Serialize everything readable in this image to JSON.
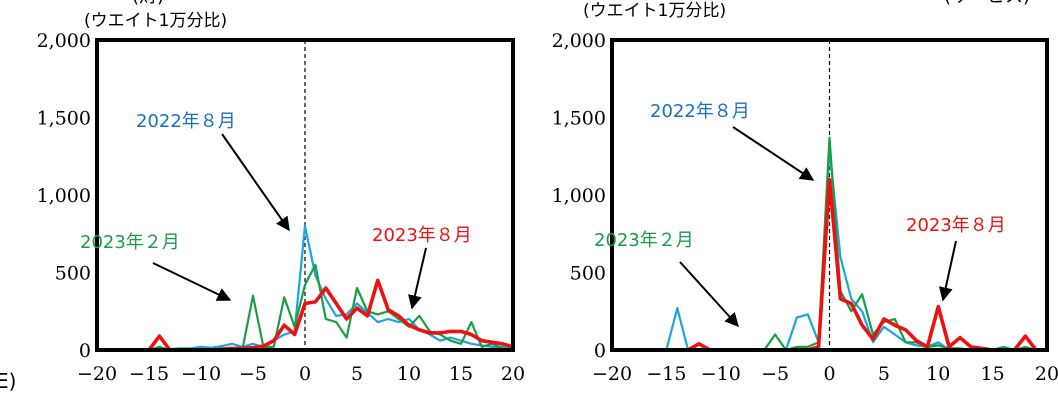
{
  "edge_label": "E)",
  "chart_data": [
    {
      "type": "line",
      "unit_label": "(ウエイト1万分比)",
      "title_fragment": "(財)",
      "xlim": [
        -20,
        20
      ],
      "ylim": [
        0,
        2000
      ],
      "x_ticks": [
        "-20",
        "-15",
        "-10",
        "-5",
        "0",
        "5",
        "10",
        "15",
        "20"
      ],
      "y_ticks": [
        "0",
        "500",
        "1,000",
        "1,500",
        "2,000"
      ],
      "reference_line_x": 0,
      "x": [
        -20,
        -19,
        -18,
        -17,
        -16,
        -15,
        -14,
        -13,
        -12,
        -11,
        -10,
        -9,
        -8,
        -7,
        -6,
        -5,
        -4,
        -3,
        -2,
        -1,
        0,
        1,
        2,
        3,
        4,
        5,
        6,
        7,
        8,
        9,
        10,
        11,
        12,
        13,
        14,
        15,
        16,
        17,
        18,
        19,
        20
      ],
      "series": [
        {
          "color": "#1aa5e0",
          "values": [
            0,
            0,
            0,
            0,
            0,
            0,
            10,
            5,
            10,
            10,
            20,
            15,
            25,
            40,
            20,
            40,
            20,
            60,
            100,
            120,
            800,
            480,
            330,
            220,
            230,
            300,
            240,
            180,
            200,
            180,
            200,
            130,
            100,
            60,
            80,
            60,
            40,
            30,
            20,
            20,
            10
          ]
        },
        {
          "color": "#1a9e45",
          "values": [
            0,
            0,
            0,
            0,
            0,
            0,
            20,
            0,
            0,
            0,
            0,
            0,
            10,
            10,
            10,
            350,
            20,
            20,
            340,
            150,
            420,
            550,
            200,
            180,
            80,
            400,
            250,
            230,
            250,
            200,
            150,
            220,
            120,
            100,
            60,
            40,
            180,
            20,
            40,
            10,
            0
          ]
        },
        {
          "color": "#ee1111",
          "values": [
            0,
            0,
            0,
            0,
            0,
            0,
            90,
            0,
            0,
            0,
            0,
            0,
            5,
            10,
            10,
            15,
            25,
            60,
            160,
            100,
            300,
            310,
            400,
            300,
            200,
            270,
            220,
            450,
            260,
            220,
            160,
            130,
            110,
            110,
            120,
            120,
            100,
            60,
            50,
            40,
            20
          ]
        }
      ],
      "annotations": [
        {
          "text": "2022年８月",
          "color": "#1a6fc0"
        },
        {
          "text": "2023年２月",
          "color": "#1a9e45"
        },
        {
          "text": "2023年８月",
          "color": "#ee1111"
        }
      ]
    },
    {
      "type": "line",
      "unit_label": "(ウエイト1万分比)",
      "title_fragment": "(サービス)",
      "xlim": [
        -20,
        20
      ],
      "ylim": [
        0,
        2000
      ],
      "x_ticks": [
        "-20",
        "-15",
        "-10",
        "-5",
        "0",
        "5",
        "10",
        "15",
        "20"
      ],
      "y_ticks": [
        "0",
        "500",
        "1,000",
        "1,500",
        "2,000"
      ],
      "reference_line_x": 0,
      "x": [
        -20,
        -19,
        -18,
        -17,
        -16,
        -15,
        -14,
        -13,
        -12,
        -11,
        -10,
        -9,
        -8,
        -7,
        -6,
        -5,
        -4,
        -3,
        -2,
        -1,
        0,
        1,
        2,
        3,
        4,
        5,
        6,
        7,
        8,
        9,
        10,
        11,
        12,
        13,
        14,
        15,
        16,
        17,
        18,
        19,
        20
      ],
      "series": [
        {
          "color": "#1aa5e0",
          "values": [
            0,
            0,
            0,
            0,
            0,
            0,
            270,
            0,
            0,
            0,
            0,
            0,
            0,
            0,
            0,
            0,
            0,
            210,
            230,
            50,
            1300,
            600,
            330,
            250,
            50,
            150,
            100,
            50,
            30,
            20,
            50,
            0,
            0,
            0,
            0,
            0,
            0,
            0,
            0,
            0,
            0
          ]
        },
        {
          "color": "#1a9e45",
          "values": [
            0,
            0,
            0,
            0,
            0,
            0,
            0,
            0,
            0,
            0,
            0,
            0,
            0,
            0,
            0,
            100,
            0,
            20,
            20,
            50,
            1370,
            380,
            250,
            360,
            100,
            180,
            200,
            50,
            50,
            20,
            30,
            10,
            10,
            0,
            10,
            0,
            20,
            0,
            20,
            0,
            0
          ]
        },
        {
          "color": "#ee1111",
          "values": [
            0,
            0,
            0,
            0,
            0,
            0,
            0,
            0,
            40,
            0,
            0,
            0,
            0,
            0,
            0,
            0,
            0,
            0,
            0,
            20,
            1100,
            330,
            300,
            160,
            70,
            200,
            160,
            130,
            60,
            20,
            280,
            20,
            80,
            20,
            10,
            0,
            0,
            0,
            90,
            0,
            0
          ]
        }
      ],
      "annotations": [
        {
          "text": "2022年８月",
          "color": "#1a6fc0"
        },
        {
          "text": "2023年２月",
          "color": "#1a9e45"
        },
        {
          "text": "2023年８月",
          "color": "#ee1111"
        }
      ]
    }
  ]
}
